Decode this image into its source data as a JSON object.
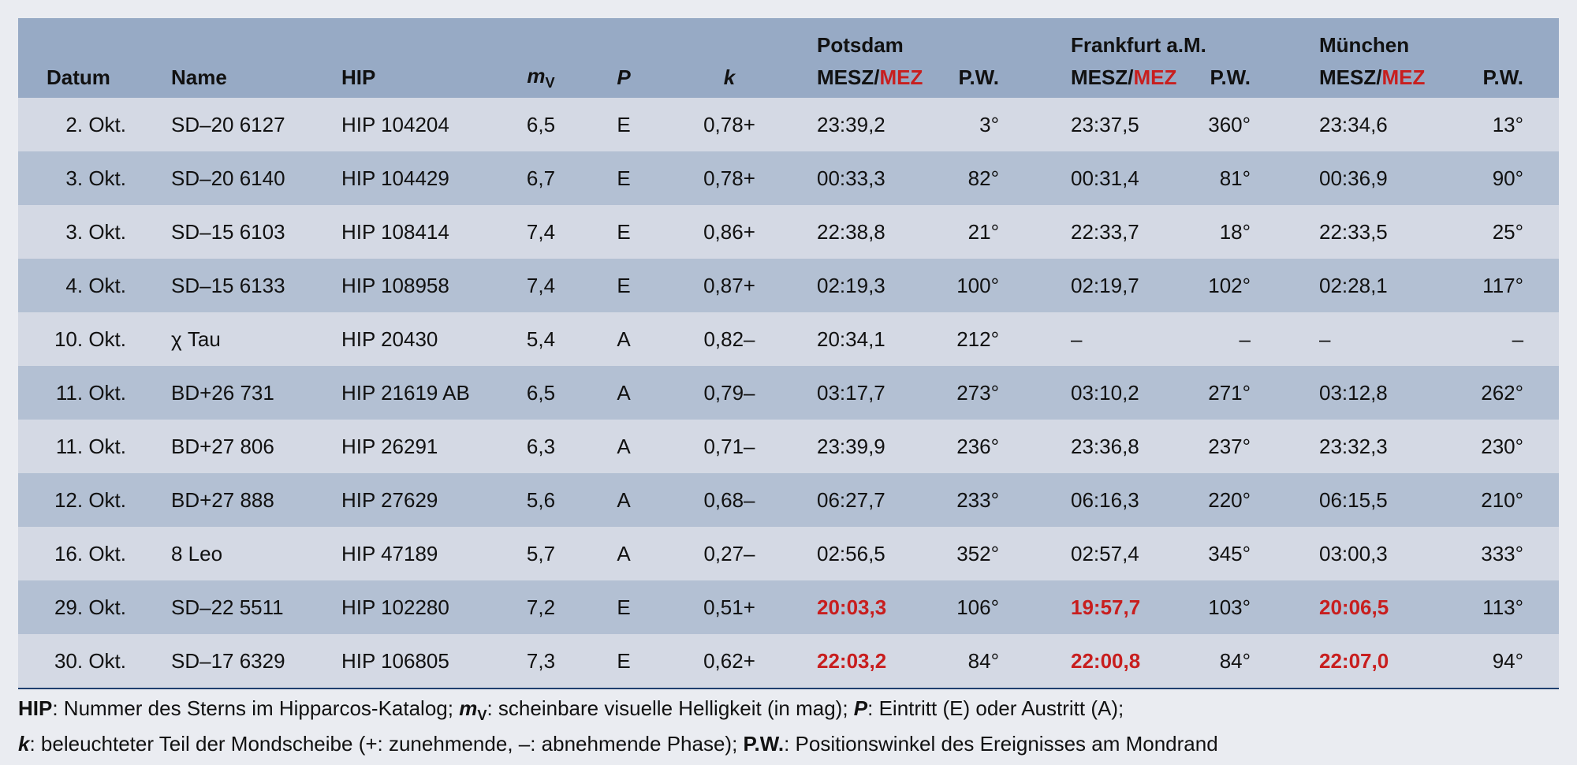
{
  "table": {
    "groups": [
      "Potsdam",
      "Frankfurt a.M.",
      "München"
    ],
    "columns": [
      {
        "text": "Datum"
      },
      {
        "text": "Name"
      },
      {
        "text": "HIP"
      },
      {
        "text": "m",
        "sub": "V",
        "italic": true
      },
      {
        "text": "P",
        "italic": true
      },
      {
        "text": "k",
        "italic": true
      },
      {
        "text": "MESZ/",
        "red": "MEZ"
      },
      {
        "text": "P.W."
      },
      {
        "text": "MESZ/",
        "red": "MEZ"
      },
      {
        "text": "P.W."
      },
      {
        "text": "MESZ/",
        "red": "MEZ"
      },
      {
        "text": "P.W."
      }
    ],
    "rows": [
      {
        "cells": [
          "2. Okt.",
          "SD–20 6127",
          "HIP 104204",
          "6,5",
          "E",
          "0,78+",
          "23:39,2",
          "3°",
          "23:37,5",
          "360°",
          "23:34,6",
          "13°"
        ]
      },
      {
        "cells": [
          "3. Okt.",
          "SD–20 6140",
          "HIP 104429",
          "6,7",
          "E",
          "0,78+",
          "00:33,3",
          "82°",
          "00:31,4",
          "81°",
          "00:36,9",
          "90°"
        ]
      },
      {
        "cells": [
          "3. Okt.",
          "SD–15 6103",
          "HIP 108414",
          "7,4",
          "E",
          "0,86+",
          "22:38,8",
          "21°",
          "22:33,7",
          "18°",
          "22:33,5",
          "25°"
        ]
      },
      {
        "cells": [
          "4. Okt.",
          "SD–15 6133",
          "HIP 108958",
          "7,4",
          "E",
          "0,87+",
          "02:19,3",
          "100°",
          "02:19,7",
          "102°",
          "02:28,1",
          "117°"
        ]
      },
      {
        "cells": [
          "10. Okt.",
          "χ Tau",
          "HIP 20430",
          "5,4",
          "A",
          "0,82–",
          "20:34,1",
          "212°",
          "–",
          "–",
          "–",
          "–"
        ]
      },
      {
        "cells": [
          "11. Okt.",
          "BD+26 731",
          "HIP 21619 AB",
          "6,5",
          "A",
          "0,79–",
          "03:17,7",
          "273°",
          "03:10,2",
          "271°",
          "03:12,8",
          "262°"
        ]
      },
      {
        "cells": [
          "11. Okt.",
          "BD+27 806",
          "HIP 26291",
          "6,3",
          "A",
          "0,71–",
          "23:39,9",
          "236°",
          "23:36,8",
          "237°",
          "23:32,3",
          "230°"
        ]
      },
      {
        "cells": [
          "12. Okt.",
          "BD+27 888",
          "HIP 27629",
          "5,6",
          "A",
          "0,68–",
          "06:27,7",
          "233°",
          "06:16,3",
          "220°",
          "06:15,5",
          "210°"
        ]
      },
      {
        "cells": [
          "16. Okt.",
          "8 Leo",
          "HIP 47189",
          "5,7",
          "A",
          "0,27–",
          "02:56,5",
          "352°",
          "02:57,4",
          "345°",
          "03:00,3",
          "333°"
        ]
      },
      {
        "cells": [
          "29. Okt.",
          "SD–22 5511",
          "HIP 102280",
          "7,2",
          "E",
          "0,51+",
          "20:03,3",
          "106°",
          "19:57,7",
          "103°",
          "20:06,5",
          "113°"
        ],
        "mez": true
      },
      {
        "cells": [
          "30. Okt.",
          "SD–17 6329",
          "HIP 106805",
          "7,3",
          "E",
          "0,62+",
          "22:03,2",
          "84°",
          "22:00,8",
          "84°",
          "22:07,0",
          "94°"
        ],
        "mez": true
      }
    ]
  },
  "footnote": {
    "lines": [
      [
        {
          "text": "HIP",
          "bold": true
        },
        {
          "text": ": Nummer des Sterns im Hipparcos-Katalog; "
        },
        {
          "text": "m",
          "bold": true,
          "italic": true,
          "sub": "V"
        },
        {
          "text": ": scheinbare visuelle Helligkeit (in mag); "
        },
        {
          "text": "P",
          "bold": true,
          "italic": true
        },
        {
          "text": ": Eintritt (E) oder Austritt (A);"
        }
      ],
      [
        {
          "text": "k",
          "bold": true,
          "italic": true
        },
        {
          "text": ": beleuchteter Teil der Mondscheibe (+: zunehmende, –: abnehmende Phase); "
        },
        {
          "text": "P.W.",
          "bold": true
        },
        {
          "text": ": Positionswinkel des Ereignisses am Mondrand"
        }
      ]
    ]
  }
}
